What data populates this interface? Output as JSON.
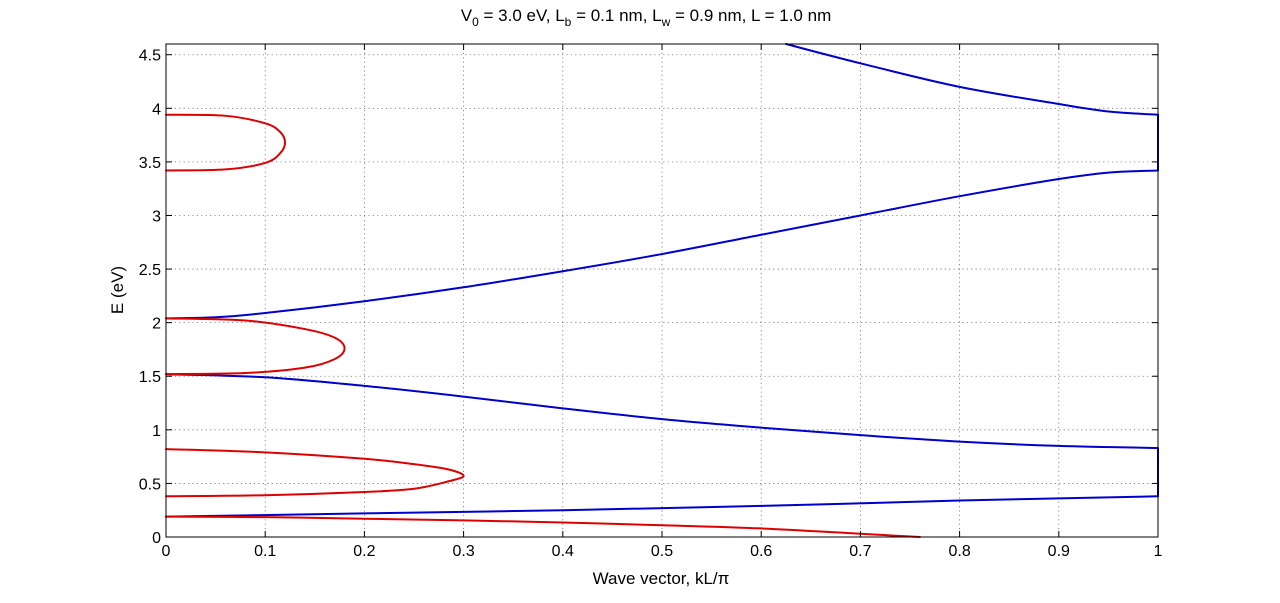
{
  "chart_data": {
    "type": "line",
    "title": "V0 = 3.0 eV, Lb = 0.1 nm, Lw = 0.9 nm, L = 1.0 nm",
    "title_parts": {
      "v_main": "V",
      "v_sub": "0",
      "v_rest": " = 3.0 eV, L",
      "b_sub": "b",
      "b_rest": " = 0.1 nm, L",
      "w_sub": "w",
      "w_rest": " = 0.9 nm, L = 1.0 nm"
    },
    "xlabel": "Wave vector, kL/π",
    "ylabel": "E (eV)",
    "xlim": [
      0,
      1
    ],
    "ylim": [
      0,
      4.6
    ],
    "grid": true,
    "x_ticks": [
      0,
      0.1,
      0.2,
      0.3,
      0.4,
      0.5,
      0.6,
      0.7,
      0.8,
      0.9,
      1
    ],
    "x_tick_labels": [
      "0",
      "0.1",
      "0.2",
      "0.3",
      "0.4",
      "0.5",
      "0.6",
      "0.7",
      "0.8",
      "0.9",
      "1"
    ],
    "y_ticks": [
      0,
      0.5,
      1,
      1.5,
      2,
      2.5,
      3,
      3.5,
      4,
      4.5
    ],
    "y_tick_labels": [
      "0",
      "0.5",
      "1",
      "1.5",
      "2",
      "2.5",
      "3",
      "3.5",
      "4",
      "4.5"
    ],
    "colors": {
      "real_band": "#0000cc",
      "imag_band": "#dd0000"
    },
    "series": [
      {
        "color": "#0000cc",
        "x": [
          0,
          0.2,
          0.4,
          0.6,
          0.8,
          0.9,
          1.0
        ],
        "y": [
          0.19,
          0.22,
          0.25,
          0.29,
          0.34,
          0.36,
          0.38
        ]
      },
      {
        "color": "#0000cc",
        "x": [
          1.0,
          1.0
        ],
        "y": [
          0.38,
          0.82
        ]
      },
      {
        "color": "#0000cc",
        "x": [
          0,
          0.1,
          0.2,
          0.3,
          0.4,
          0.5,
          0.6,
          0.7,
          0.8,
          0.9,
          1.0
        ],
        "y": [
          1.52,
          1.49,
          1.41,
          1.31,
          1.2,
          1.1,
          1.02,
          0.95,
          0.89,
          0.85,
          0.83
        ]
      },
      {
        "color": "#0000cc",
        "x": [
          0,
          0.05,
          0.1,
          0.2,
          0.3,
          0.4,
          0.5,
          0.6,
          0.7,
          0.8,
          0.9,
          0.95,
          1.0
        ],
        "y": [
          2.04,
          2.05,
          2.09,
          2.2,
          2.33,
          2.48,
          2.64,
          2.82,
          3.0,
          3.18,
          3.34,
          3.4,
          3.42
        ]
      },
      {
        "color": "#0000cc",
        "x": [
          1.0,
          1.0
        ],
        "y": [
          3.42,
          3.94
        ]
      },
      {
        "color": "#0000cc",
        "x": [
          0.625,
          0.7,
          0.8,
          0.9,
          0.95,
          1.0
        ],
        "y": [
          4.6,
          4.42,
          4.2,
          4.04,
          3.97,
          3.94
        ]
      },
      {
        "color": "#dd0000",
        "x": [
          0,
          0.1,
          0.2,
          0.3,
          0.4,
          0.5,
          0.6,
          0.7,
          0.76
        ],
        "y": [
          0.19,
          0.185,
          0.17,
          0.155,
          0.135,
          0.11,
          0.08,
          0.03,
          0.0
        ]
      },
      {
        "color": "#dd0000",
        "x": [
          0,
          0.1,
          0.2,
          0.25,
          0.285,
          0.3,
          0.285,
          0.25,
          0.2,
          0.1,
          0
        ],
        "y": [
          0.38,
          0.39,
          0.42,
          0.45,
          0.52,
          0.57,
          0.63,
          0.68,
          0.73,
          0.79,
          0.82
        ]
      },
      {
        "color": "#dd0000",
        "x": [
          0,
          0.08,
          0.14,
          0.17,
          0.18,
          0.17,
          0.14,
          0.08,
          0
        ],
        "y": [
          1.52,
          1.53,
          1.58,
          1.66,
          1.76,
          1.86,
          1.94,
          2.02,
          2.04
        ]
      },
      {
        "color": "#dd0000",
        "x": [
          0,
          0.06,
          0.1,
          0.115,
          0.12,
          0.115,
          0.1,
          0.06,
          0
        ],
        "y": [
          3.42,
          3.43,
          3.49,
          3.58,
          3.68,
          3.78,
          3.86,
          3.93,
          3.94
        ]
      }
    ]
  }
}
